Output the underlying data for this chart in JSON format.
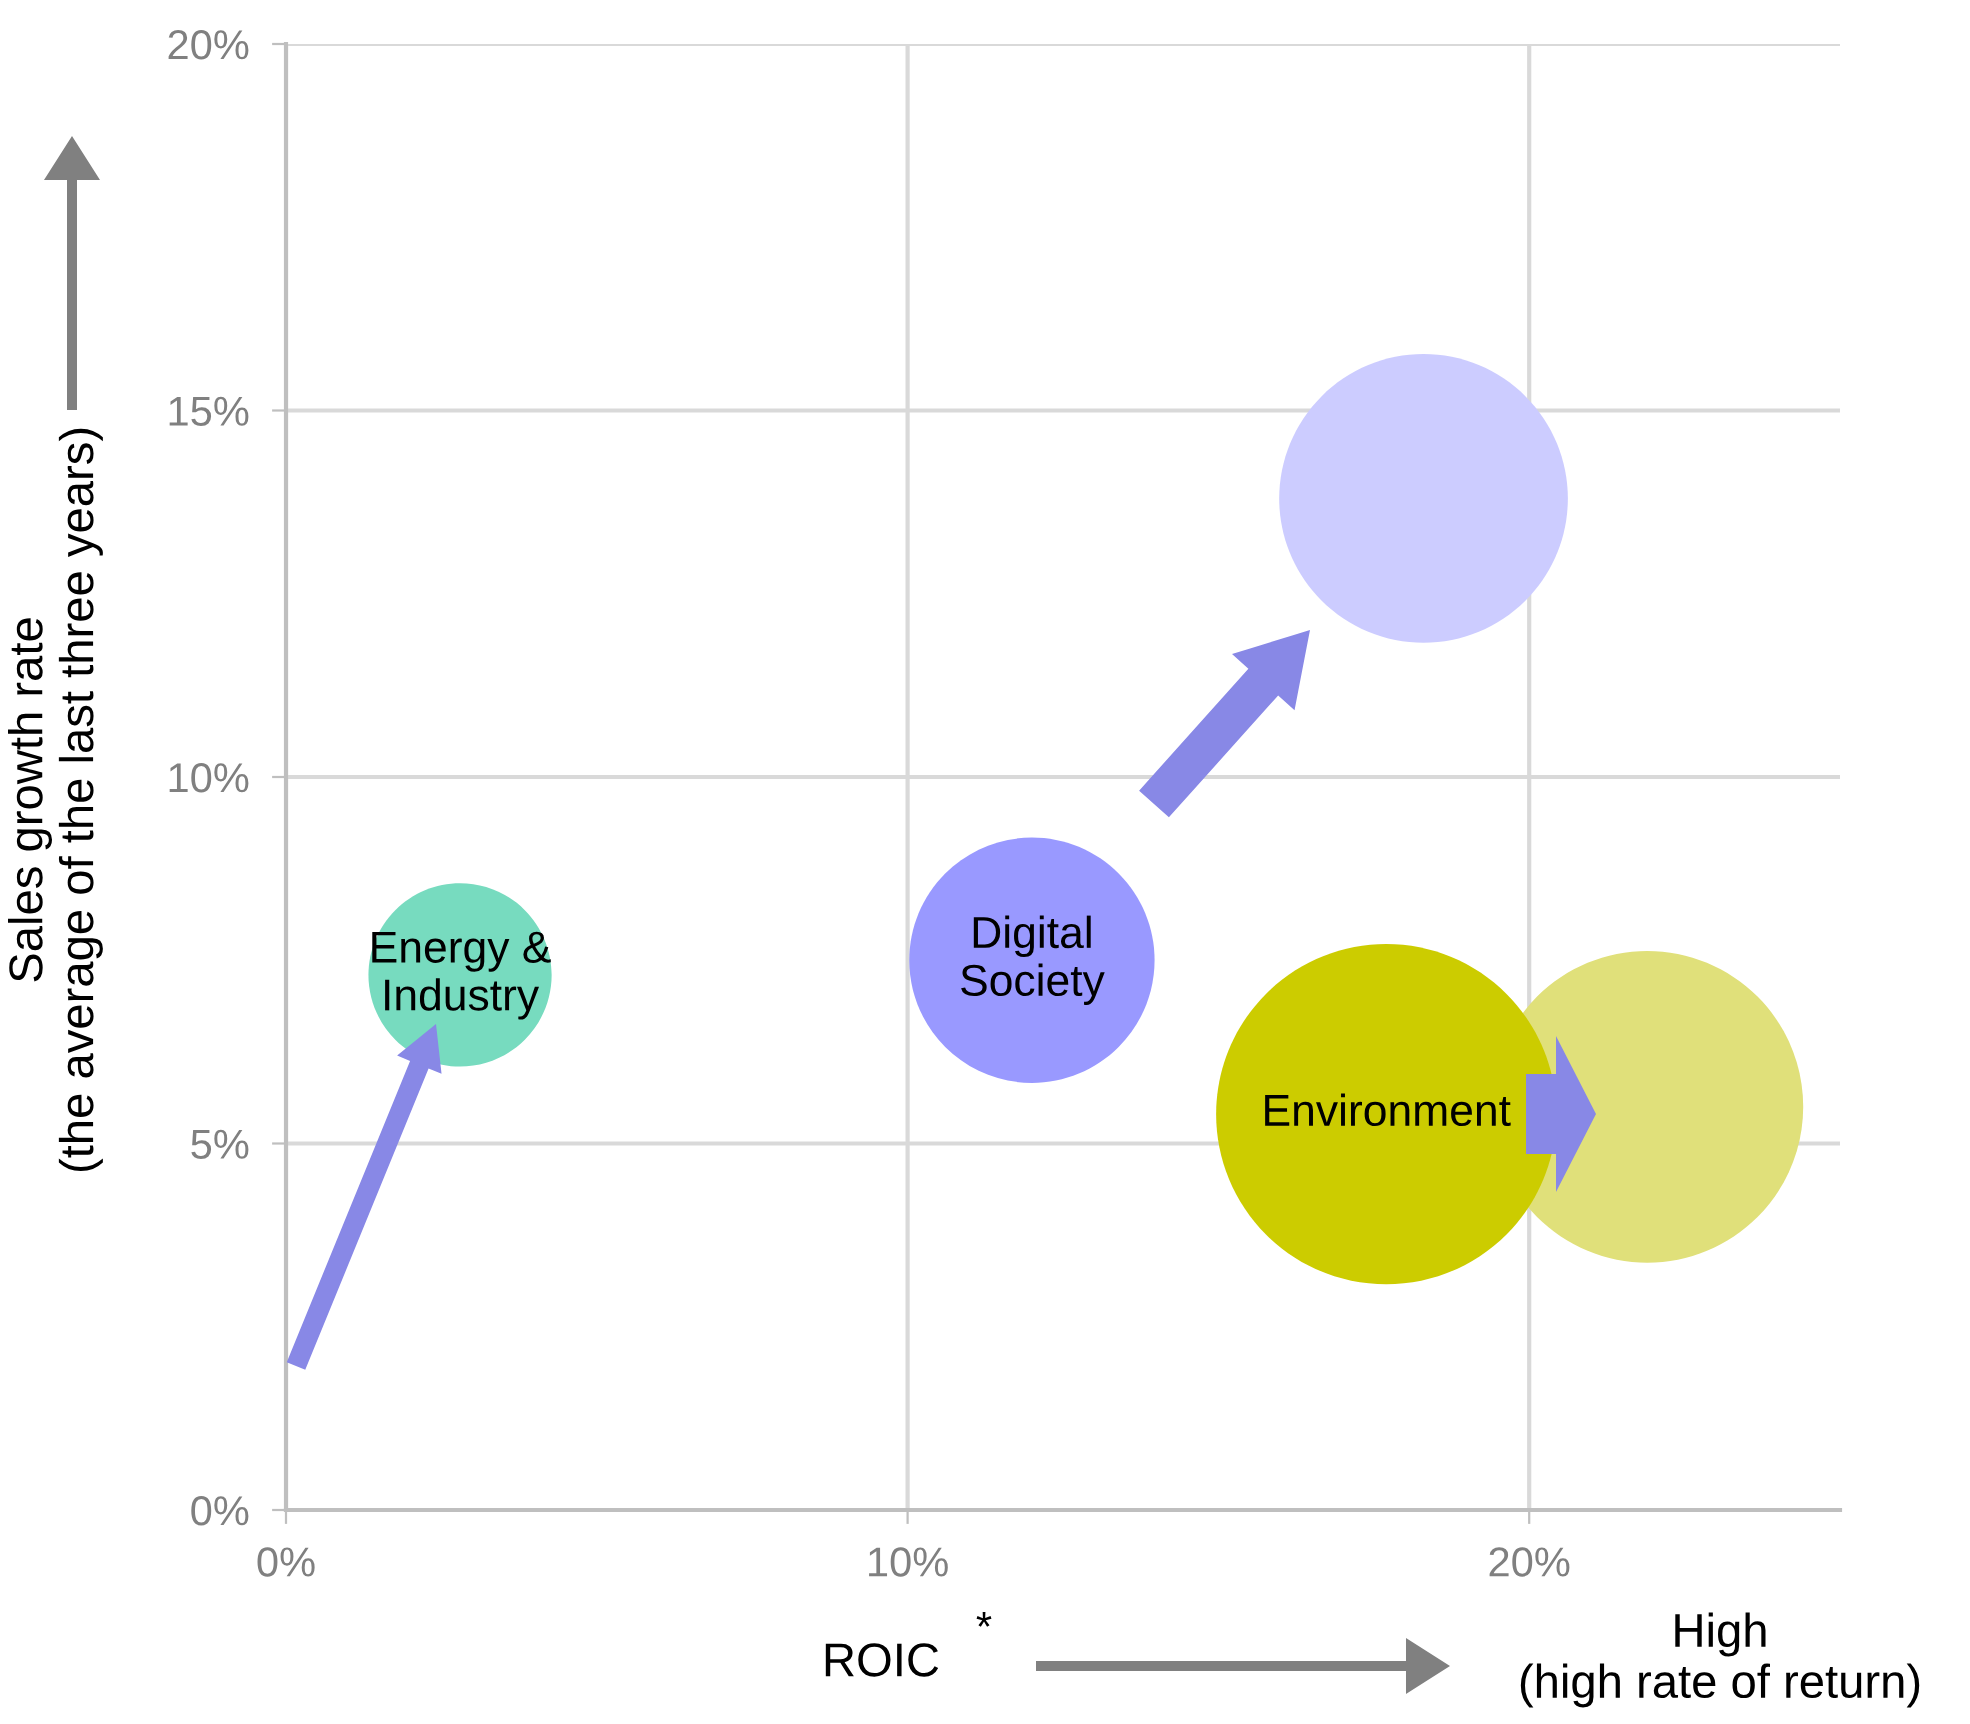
{
  "chart_data": {
    "type": "bubble",
    "xlabel": "ROIC",
    "ylabel": "Sales growth rate\n(the average of the last three years)",
    "annotations": [
      "*",
      "High\n(high rate of return)"
    ],
    "series": [
      {
        "name": "Energy &\nIndustry",
        "color": "#77dbbf",
        "x": [
          2.8
        ],
        "values": [
          7.3
        ],
        "sizes": [
          0.29
        ]
      },
      {
        "name": "Digital\nSociety",
        "color": "#9999ff",
        "x": [
          12.0
        ],
        "values": [
          7.5
        ],
        "sizes": [
          0.52
        ]
      },
      {
        "color": "#ccccff",
        "x": [
          18.3
        ],
        "values": [
          13.8
        ],
        "sizes": [
          0.72
        ]
      },
      {
        "color": "#e0e07a",
        "x": [
          21.9
        ],
        "values": [
          5.5
        ],
        "sizes": [
          0.84
        ]
      },
      {
        "name": "Environment",
        "color": "#cccc00",
        "x": [
          17.7
        ],
        "values": [
          5.4
        ],
        "sizes": [
          1
        ]
      }
    ],
    "xlim": [
      0,
      25
    ],
    "ylim": [
      0,
      20
    ],
    "xticks": [
      {
        "value": 0,
        "label": "0%"
      },
      {
        "value": 10,
        "label": "10%"
      },
      {
        "value": 20,
        "label": "20%"
      }
    ],
    "yticks": [
      {
        "value": 0,
        "label": "0%"
      },
      {
        "value": 5,
        "label": "5%"
      },
      {
        "value": 10,
        "label": "10%"
      },
      {
        "value": 15,
        "label": "15%"
      },
      {
        "value": 20,
        "label": "20%"
      }
    ],
    "grid": true,
    "legend": false
  }
}
